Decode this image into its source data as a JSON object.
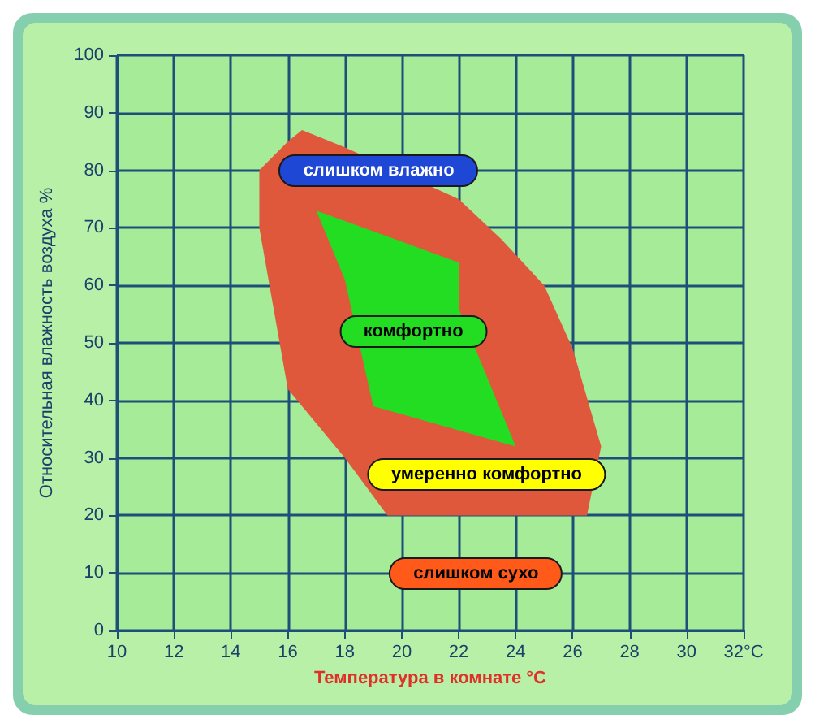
{
  "chart_data": {
    "type": "area",
    "xlabel": "Температура в комнате °C",
    "ylabel": "Относительная влажность воздуха %",
    "xlim": [
      10,
      32
    ],
    "xticks": [
      10,
      12,
      14,
      16,
      18,
      20,
      22,
      24,
      26,
      28,
      30,
      {
        "value": 32,
        "label": "32°C"
      }
    ],
    "ylim": [
      0,
      100
    ],
    "yticks": [
      0,
      10,
      20,
      30,
      40,
      50,
      60,
      70,
      80,
      90,
      100
    ],
    "grid": true,
    "series": [
      {
        "color": "#e0583c",
        "x": [
          16.5,
          18,
          22,
          23.5,
          25,
          26,
          27,
          26.5,
          19.5,
          18,
          16,
          15,
          15,
          16
        ],
        "values": [
          87,
          84,
          75,
          68,
          60,
          49,
          32,
          20,
          20,
          30,
          42,
          70,
          80,
          85
        ]
      },
      {
        "color": "#22dd22",
        "x": [
          17,
          22,
          22,
          24,
          19,
          18
        ],
        "values": [
          73,
          64,
          56,
          32,
          39,
          61
        ]
      }
    ],
    "annotations": [
      "слишком влажно",
      "комфортно",
      "умеренно комфортно",
      "слишком сухо"
    ]
  }
}
